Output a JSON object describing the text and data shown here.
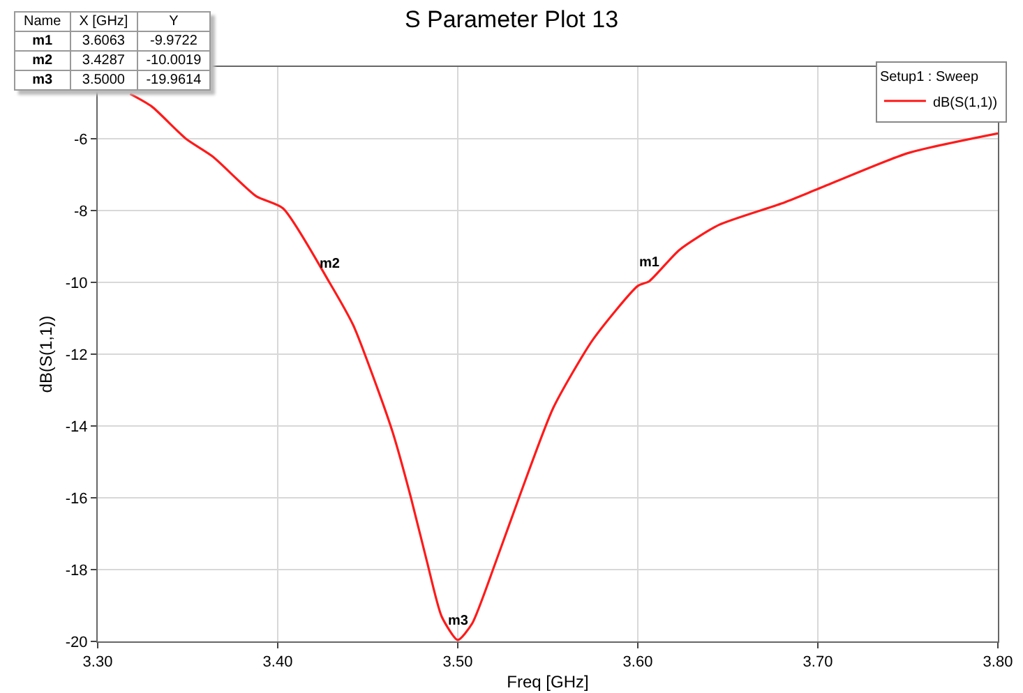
{
  "chart_data": {
    "type": "line",
    "title": "S Parameter Plot 13",
    "xlabel": "Freq [GHz]",
    "ylabel": "dB(S(1,1))",
    "legend_title": "Setup1 : Sweep",
    "x": [
      3.318,
      3.33,
      3.349,
      3.364,
      3.388,
      3.403,
      3.4287,
      3.442,
      3.455,
      3.464,
      3.474,
      3.483,
      3.491,
      3.5,
      3.508,
      3.521,
      3.534,
      3.553,
      3.575,
      3.6,
      3.6063,
      3.623,
      3.645,
      3.68,
      3.7,
      3.75,
      3.8
    ],
    "series": [
      {
        "name": "dB(S(1,1))",
        "color": "#ff1a1a",
        "values": [
          -4.75,
          -5.1,
          -6.0,
          -6.5,
          -7.6,
          -7.94,
          -10.0,
          -11.2,
          -12.9,
          -14.2,
          -16.0,
          -17.8,
          -19.3,
          -19.96,
          -19.5,
          -17.8,
          -16.0,
          -13.5,
          -11.6,
          -10.1,
          -9.97,
          -9.1,
          -8.4,
          -7.8,
          -7.4,
          -6.4,
          -5.85
        ]
      }
    ],
    "xlim": [
      3.3,
      3.8
    ],
    "xticks": [
      {
        "value": 3.3,
        "label": "3.30"
      },
      {
        "value": 3.4,
        "label": "3.40"
      },
      {
        "value": 3.5,
        "label": "3.50"
      },
      {
        "value": 3.6,
        "label": "3.60"
      },
      {
        "value": 3.7,
        "label": "3.70"
      },
      {
        "value": 3.8,
        "label": "3.80"
      }
    ],
    "ylim": [
      -20,
      -4
    ],
    "yticks": [
      -20,
      -18,
      -16,
      -14,
      -12,
      -10,
      -8,
      -6
    ],
    "grid": true,
    "legend": "top right",
    "marker": "none",
    "line_style": "solid",
    "annotations": [
      {
        "text": "m1",
        "x": 3.6063,
        "y": -9.9722
      },
      {
        "text": "m2",
        "x": 3.4287,
        "y": -10.0019
      },
      {
        "text": "m3",
        "x": 3.5,
        "y": -19.9614
      },
      "Name",
      "X [GHz]",
      "Y",
      "m1",
      "3.6063",
      "-9.9722",
      "m2",
      "3.4287",
      "-10.0019",
      "m3",
      "3.5000",
      "-19.9614"
    ]
  }
}
